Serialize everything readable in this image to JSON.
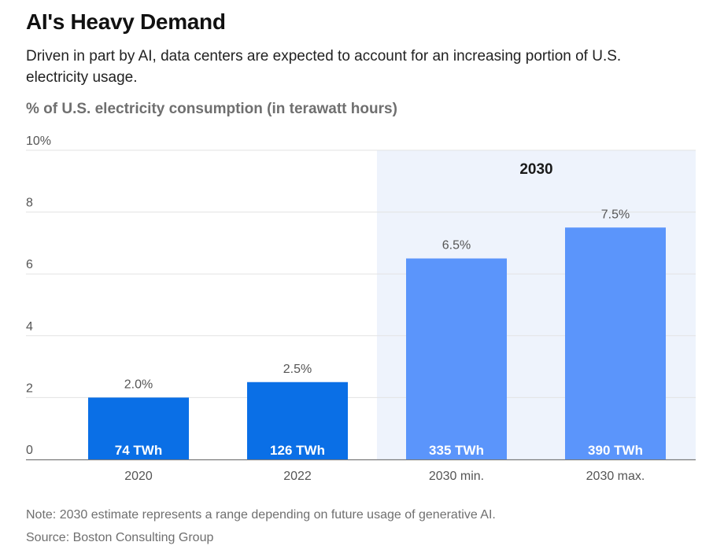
{
  "header": {
    "title": "AI's Heavy Demand",
    "subtitle": "Driven in part by AI, data centers are expected to account for an increasing portion of U.S. electricity usage."
  },
  "chart_data": {
    "type": "bar",
    "title": "AI's Heavy Demand",
    "subtitle": "Driven in part by AI, data centers are expected to account for an increasing portion of U.S. electricity usage.",
    "ylabel": "% of U.S. electricity consumption (in terawatt hours)",
    "xlabel": "",
    "categories": [
      "2020",
      "2022",
      "2030 min.",
      "2030 max."
    ],
    "values": [
      2.0,
      2.5,
      6.5,
      7.5
    ],
    "value_labels": [
      "2.0%",
      "2.5%",
      "6.5%",
      "7.5%"
    ],
    "inner_labels": [
      "74 TWh",
      "126 TWh",
      "335 TWh",
      "390 TWh"
    ],
    "ylim": [
      0,
      10
    ],
    "yticks": [
      0,
      2,
      4,
      6,
      8,
      10
    ],
    "ytick_labels": [
      "0",
      "2",
      "4",
      "6",
      "8",
      "10%"
    ],
    "grid": true,
    "highlight_group": {
      "label": "2030",
      "categories": [
        "2030 min.",
        "2030 max."
      ]
    },
    "colors": {
      "historical": "#0a6fe6",
      "projection": "#5b95fb",
      "highlight_bg": "#eef3fc",
      "gridline": "#e3e3e3",
      "baseline": "#7a7a7a"
    }
  },
  "footer": {
    "note": "Note: 2030 estimate represents a range depending on future usage of generative AI.",
    "source": "Source: Boston Consulting Group"
  }
}
